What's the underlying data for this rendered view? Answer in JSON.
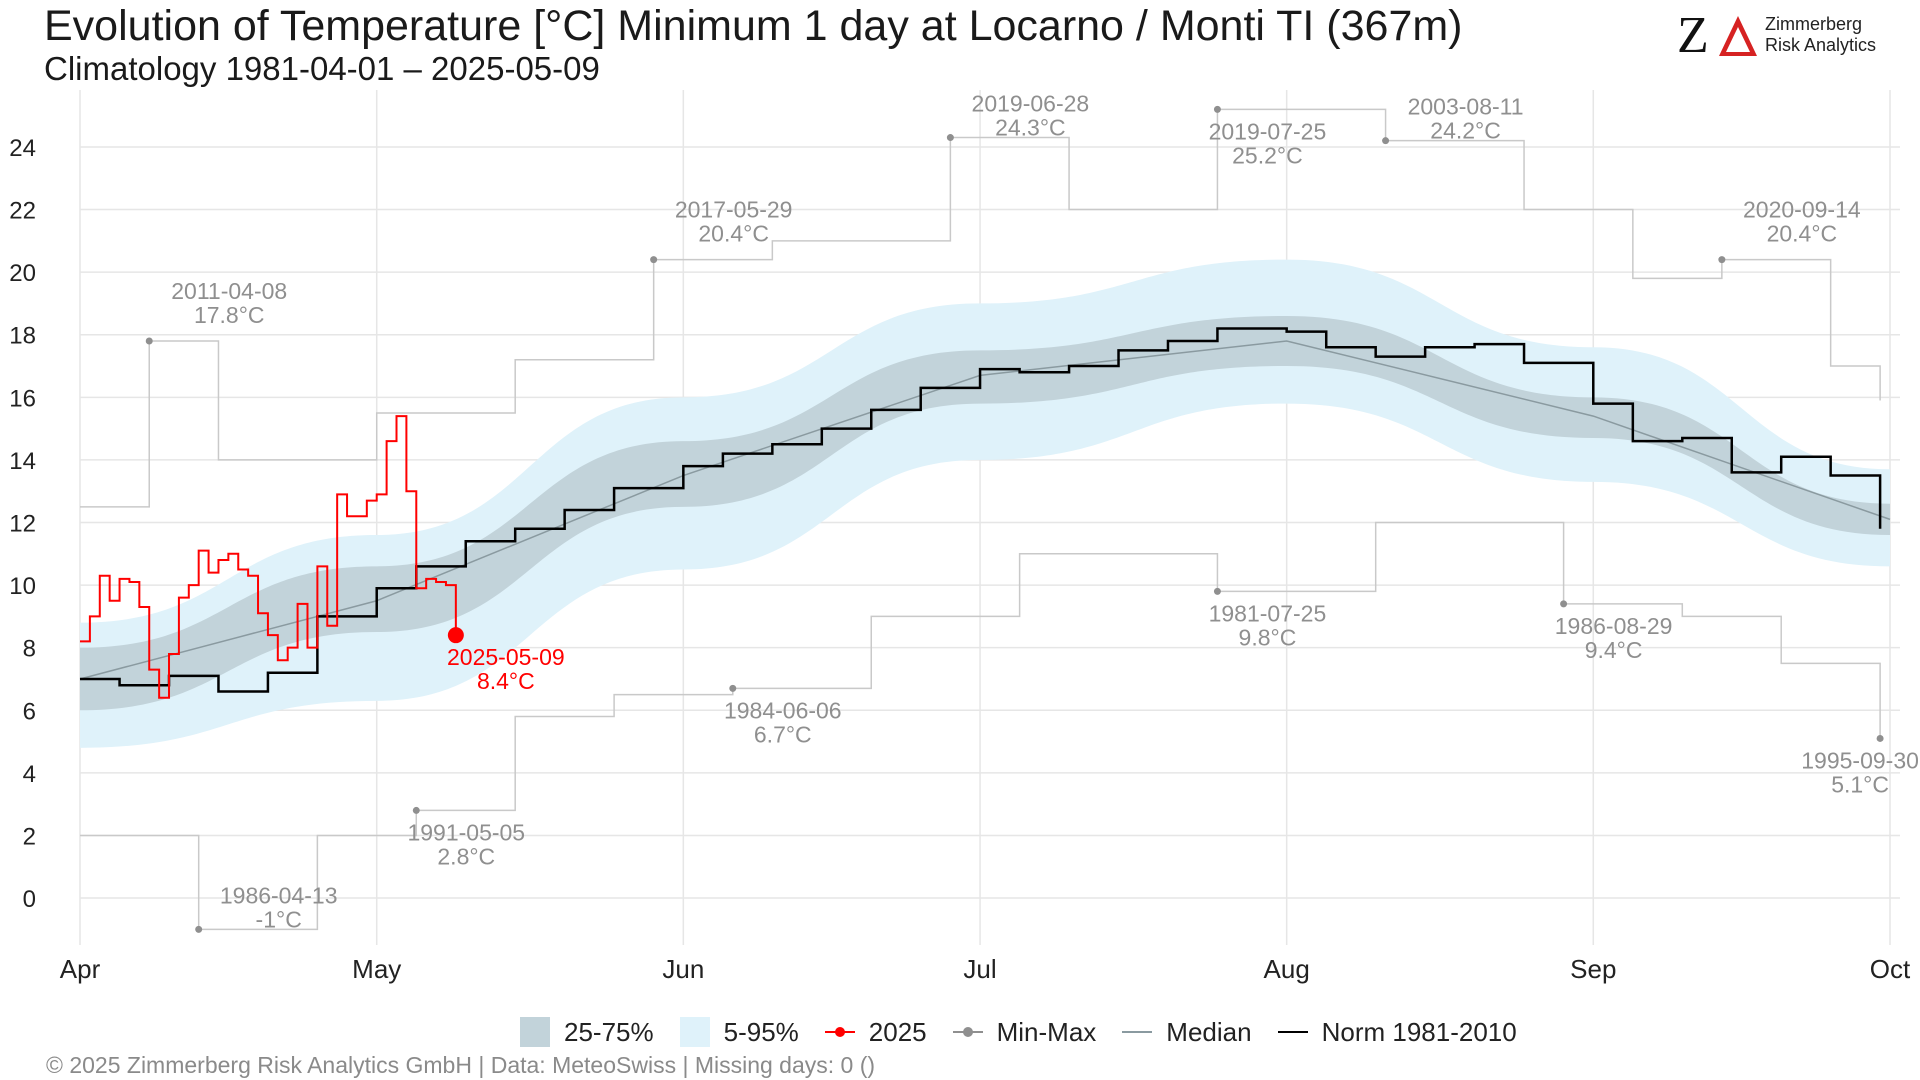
{
  "header": {
    "title": "Evolution of Temperature [°C] Minimum 1 day at Locarno / Monti  TI (367m)",
    "subtitle": "Climatology 1981-04-01 – 2025-05-09"
  },
  "logo": {
    "mark": "Z",
    "line1": "Zimmerberg",
    "line2": "Risk Analytics"
  },
  "footer": {
    "text": "©  2025 Zimmerberg Risk Analytics GmbH | Data: MeteoSwiss | Missing days: 0 ()"
  },
  "legend": {
    "iqr": "25-75%",
    "p90": "5-95%",
    "current": "2025",
    "minmax": "Min-Max",
    "median": "Median",
    "norm": "Norm 1981-2010"
  },
  "colors": {
    "iqr": "#c2d3da",
    "p90": "#dff2fa",
    "current": "#ff0000",
    "minmax": "#c9c9c9",
    "record": "#8f8f8f",
    "median": "#8a9aa0",
    "norm": "#000000",
    "grid": "#e6e6e6"
  },
  "chart_data": {
    "type": "line",
    "x_axis": {
      "ticks": [
        "Apr",
        "May",
        "Jun",
        "Jul",
        "Aug",
        "Sep",
        "Oct"
      ],
      "range": [
        "04-01",
        "10-01"
      ]
    },
    "y_axis": {
      "ticks": [
        0,
        2,
        4,
        6,
        8,
        10,
        12,
        14,
        16,
        18,
        20,
        22,
        24
      ],
      "range": [
        -1.5,
        25.5
      ]
    },
    "grid": true,
    "legend_position": "bottom",
    "bands": {
      "p5": [
        {
          "x": "04-01",
          "y": 4.8
        },
        {
          "x": "05-01",
          "y": 6.3
        },
        {
          "x": "06-01",
          "y": 10.5
        },
        {
          "x": "07-01",
          "y": 14.0
        },
        {
          "x": "08-01",
          "y": 15.8
        },
        {
          "x": "09-01",
          "y": 13.3
        },
        {
          "x": "10-01",
          "y": 10.6
        }
      ],
      "p25": [
        {
          "x": "04-01",
          "y": 6.0
        },
        {
          "x": "05-01",
          "y": 8.5
        },
        {
          "x": "06-01",
          "y": 12.5
        },
        {
          "x": "07-01",
          "y": 15.8
        },
        {
          "x": "08-01",
          "y": 17.0
        },
        {
          "x": "09-01",
          "y": 14.7
        },
        {
          "x": "10-01",
          "y": 11.6
        }
      ],
      "p75": [
        {
          "x": "04-01",
          "y": 8.0
        },
        {
          "x": "05-01",
          "y": 10.6
        },
        {
          "x": "06-01",
          "y": 14.6
        },
        {
          "x": "07-01",
          "y": 17.5
        },
        {
          "x": "08-01",
          "y": 18.6
        },
        {
          "x": "09-01",
          "y": 16.0
        },
        {
          "x": "10-01",
          "y": 12.6
        }
      ],
      "p95": [
        {
          "x": "04-01",
          "y": 8.8
        },
        {
          "x": "05-01",
          "y": 11.6
        },
        {
          "x": "06-01",
          "y": 16.0
        },
        {
          "x": "07-01",
          "y": 19.0
        },
        {
          "x": "08-01",
          "y": 20.4
        },
        {
          "x": "09-01",
          "y": 17.6
        },
        {
          "x": "10-01",
          "y": 13.7
        }
      ]
    },
    "series": [
      {
        "name": "2025",
        "values": [
          {
            "x": "04-01",
            "y": 8.2
          },
          {
            "x": "04-02",
            "y": 9.0
          },
          {
            "x": "04-03",
            "y": 10.3
          },
          {
            "x": "04-04",
            "y": 9.5
          },
          {
            "x": "04-05",
            "y": 10.2
          },
          {
            "x": "04-06",
            "y": 10.1
          },
          {
            "x": "04-07",
            "y": 9.3
          },
          {
            "x": "04-08",
            "y": 7.3
          },
          {
            "x": "04-09",
            "y": 6.4
          },
          {
            "x": "04-10",
            "y": 7.8
          },
          {
            "x": "04-11",
            "y": 9.6
          },
          {
            "x": "04-12",
            "y": 10.0
          },
          {
            "x": "04-13",
            "y": 11.1
          },
          {
            "x": "04-14",
            "y": 10.4
          },
          {
            "x": "04-15",
            "y": 10.8
          },
          {
            "x": "04-16",
            "y": 11.0
          },
          {
            "x": "04-17",
            "y": 10.5
          },
          {
            "x": "04-18",
            "y": 10.3
          },
          {
            "x": "04-19",
            "y": 9.1
          },
          {
            "x": "04-20",
            "y": 8.4
          },
          {
            "x": "04-21",
            "y": 7.6
          },
          {
            "x": "04-22",
            "y": 8.0
          },
          {
            "x": "04-23",
            "y": 9.4
          },
          {
            "x": "04-24",
            "y": 8.0
          },
          {
            "x": "04-25",
            "y": 10.6
          },
          {
            "x": "04-26",
            "y": 8.7
          },
          {
            "x": "04-27",
            "y": 12.9
          },
          {
            "x": "04-28",
            "y": 12.2
          },
          {
            "x": "04-29",
            "y": 12.2
          },
          {
            "x": "04-30",
            "y": 12.7
          },
          {
            "x": "05-01",
            "y": 12.9
          },
          {
            "x": "05-02",
            "y": 14.6
          },
          {
            "x": "05-03",
            "y": 15.4
          },
          {
            "x": "05-04",
            "y": 13.0
          },
          {
            "x": "05-05",
            "y": 9.9
          },
          {
            "x": "05-06",
            "y": 10.2
          },
          {
            "x": "05-07",
            "y": 10.1
          },
          {
            "x": "05-08",
            "y": 10.0
          },
          {
            "x": "05-09",
            "y": 8.4
          }
        ]
      },
      {
        "name": "Norm 1981-2010",
        "values": [
          {
            "x": "04-01",
            "y": 7.0
          },
          {
            "x": "04-05",
            "y": 6.8
          },
          {
            "x": "04-10",
            "y": 7.1
          },
          {
            "x": "04-15",
            "y": 6.6
          },
          {
            "x": "04-20",
            "y": 7.2
          },
          {
            "x": "04-25",
            "y": 9.0
          },
          {
            "x": "05-01",
            "y": 9.9
          },
          {
            "x": "05-05",
            "y": 10.6
          },
          {
            "x": "05-10",
            "y": 11.4
          },
          {
            "x": "05-15",
            "y": 11.8
          },
          {
            "x": "05-20",
            "y": 12.4
          },
          {
            "x": "05-25",
            "y": 13.1
          },
          {
            "x": "06-01",
            "y": 13.8
          },
          {
            "x": "06-05",
            "y": 14.2
          },
          {
            "x": "06-10",
            "y": 14.5
          },
          {
            "x": "06-15",
            "y": 15.0
          },
          {
            "x": "06-20",
            "y": 15.6
          },
          {
            "x": "06-25",
            "y": 16.3
          },
          {
            "x": "07-01",
            "y": 16.9
          },
          {
            "x": "07-05",
            "y": 16.8
          },
          {
            "x": "07-10",
            "y": 17.0
          },
          {
            "x": "07-15",
            "y": 17.5
          },
          {
            "x": "07-20",
            "y": 17.8
          },
          {
            "x": "07-25",
            "y": 18.2
          },
          {
            "x": "08-01",
            "y": 18.1
          },
          {
            "x": "08-05",
            "y": 17.6
          },
          {
            "x": "08-10",
            "y": 17.3
          },
          {
            "x": "08-15",
            "y": 17.6
          },
          {
            "x": "08-20",
            "y": 17.7
          },
          {
            "x": "08-25",
            "y": 17.1
          },
          {
            "x": "09-01",
            "y": 15.8
          },
          {
            "x": "09-05",
            "y": 14.6
          },
          {
            "x": "09-10",
            "y": 14.7
          },
          {
            "x": "09-15",
            "y": 13.6
          },
          {
            "x": "09-20",
            "y": 14.1
          },
          {
            "x": "09-25",
            "y": 13.5
          },
          {
            "x": "09-30",
            "y": 11.8
          }
        ]
      },
      {
        "name": "Median",
        "values": [
          {
            "x": "04-01",
            "y": 7.0
          },
          {
            "x": "05-01",
            "y": 9.5
          },
          {
            "x": "06-01",
            "y": 13.5
          },
          {
            "x": "07-01",
            "y": 16.7
          },
          {
            "x": "08-01",
            "y": 17.8
          },
          {
            "x": "09-01",
            "y": 15.4
          },
          {
            "x": "10-01",
            "y": 12.1
          }
        ]
      },
      {
        "name": "Max",
        "values": [
          {
            "x": "04-01",
            "y": 12.5
          },
          {
            "x": "04-08",
            "y": 17.8
          },
          {
            "x": "04-15",
            "y": 14.0
          },
          {
            "x": "05-01",
            "y": 15.5
          },
          {
            "x": "05-15",
            "y": 17.2
          },
          {
            "x": "05-29",
            "y": 20.4
          },
          {
            "x": "06-10",
            "y": 21.0
          },
          {
            "x": "06-28",
            "y": 24.3
          },
          {
            "x": "07-10",
            "y": 22.0
          },
          {
            "x": "07-25",
            "y": 25.2
          },
          {
            "x": "08-11",
            "y": 24.2
          },
          {
            "x": "08-25",
            "y": 22.0
          },
          {
            "x": "09-05",
            "y": 19.8
          },
          {
            "x": "09-14",
            "y": 20.4
          },
          {
            "x": "09-25",
            "y": 17.0
          },
          {
            "x": "09-30",
            "y": 15.9
          }
        ]
      },
      {
        "name": "Min",
        "values": [
          {
            "x": "04-01",
            "y": 2.0
          },
          {
            "x": "04-13",
            "y": -1.0
          },
          {
            "x": "04-25",
            "y": 2.0
          },
          {
            "x": "05-05",
            "y": 2.8
          },
          {
            "x": "05-15",
            "y": 5.8
          },
          {
            "x": "05-25",
            "y": 6.5
          },
          {
            "x": "06-06",
            "y": 6.7
          },
          {
            "x": "06-20",
            "y": 9.0
          },
          {
            "x": "07-05",
            "y": 11.0
          },
          {
            "x": "07-25",
            "y": 9.8
          },
          {
            "x": "08-10",
            "y": 12.0
          },
          {
            "x": "08-29",
            "y": 9.4
          },
          {
            "x": "09-10",
            "y": 9.0
          },
          {
            "x": "09-20",
            "y": 7.5
          },
          {
            "x": "09-30",
            "y": 5.1
          }
        ]
      }
    ],
    "annotations": [
      {
        "date": "2011-04-08",
        "value": "17.8°C",
        "x": "04-08",
        "y": 17.8,
        "label_pos": "above"
      },
      {
        "date": "1986-04-13",
        "value": "-1°C",
        "x": "04-13",
        "y": -1.0,
        "label_pos": "above-right"
      },
      {
        "date": "1991-05-05",
        "value": "2.8°C",
        "x": "05-05",
        "y": 2.8,
        "label_pos": "below-right"
      },
      {
        "date": "2017-05-29",
        "value": "20.4°C",
        "x": "05-29",
        "y": 20.4,
        "label_pos": "above"
      },
      {
        "date": "1984-06-06",
        "value": "6.7°C",
        "x": "06-06",
        "y": 6.7,
        "label_pos": "below-right"
      },
      {
        "date": "2019-06-28",
        "value": "24.3°C",
        "x": "06-28",
        "y": 24.3,
        "label_pos": "above-right"
      },
      {
        "date": "2019-07-25",
        "value": "25.2°C",
        "x": "07-25",
        "y": 25.2,
        "label_pos": "below-right"
      },
      {
        "date": "1981-07-25",
        "value": "9.8°C",
        "x": "07-25",
        "y": 9.8,
        "label_pos": "below-right"
      },
      {
        "date": "2003-08-11",
        "value": "24.2°C",
        "x": "08-11",
        "y": 24.2,
        "label_pos": "above-right"
      },
      {
        "date": "1986-08-29",
        "value": "9.4°C",
        "x": "08-29",
        "y": 9.4,
        "label_pos": "below-right"
      },
      {
        "date": "2020-09-14",
        "value": "20.4°C",
        "x": "09-14",
        "y": 20.4,
        "label_pos": "above"
      },
      {
        "date": "1995-09-30",
        "value": "5.1°C",
        "x": "09-30",
        "y": 5.1,
        "label_pos": "below-left"
      },
      {
        "date": "2025-05-09",
        "value": "8.4°C",
        "x": "05-09",
        "y": 8.4,
        "label_pos": "below-right",
        "current": true
      }
    ]
  }
}
